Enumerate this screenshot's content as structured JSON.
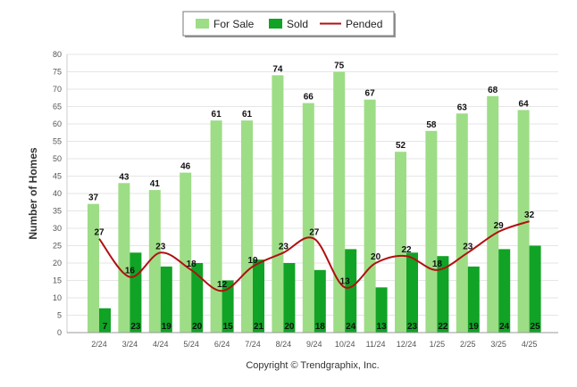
{
  "chart_data": {
    "type": "bar",
    "categories": [
      "2/24",
      "3/24",
      "4/24",
      "5/24",
      "6/24",
      "7/24",
      "8/24",
      "9/24",
      "10/24",
      "11/24",
      "12/24",
      "1/25",
      "2/25",
      "3/25",
      "4/25"
    ],
    "series": [
      {
        "name": "For Sale",
        "type": "bar",
        "color": "#9ddd86",
        "values": [
          37,
          43,
          41,
          46,
          61,
          61,
          74,
          66,
          75,
          67,
          52,
          58,
          63,
          68,
          64
        ]
      },
      {
        "name": "Sold",
        "type": "bar",
        "color": "#10a325",
        "values": [
          7,
          23,
          19,
          20,
          15,
          21,
          20,
          18,
          24,
          13,
          23,
          22,
          19,
          24,
          25
        ]
      },
      {
        "name": "Pended",
        "type": "line",
        "color": "#b01010",
        "values": [
          27,
          16,
          23,
          18,
          12,
          19,
          23,
          27,
          13,
          20,
          22,
          18,
          23,
          29,
          32
        ]
      }
    ],
    "ylabel": "Number of Homes",
    "ylim": [
      0,
      80
    ],
    "yticks": [
      "0",
      "5",
      "10",
      "15",
      "20",
      "25",
      "30",
      "35",
      "40",
      "45",
      "50",
      "55",
      "60",
      "65",
      "70",
      "75",
      "80"
    ],
    "grid": true,
    "legend_position": "top-center",
    "footer": "Copyright © Trendgraphix, Inc."
  }
}
